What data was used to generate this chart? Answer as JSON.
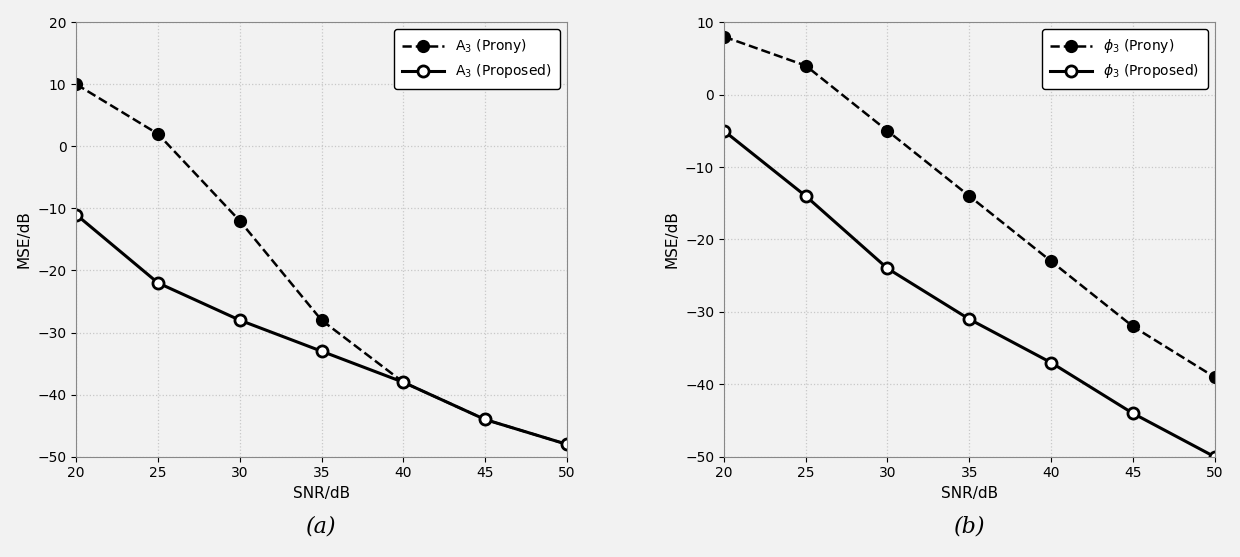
{
  "snr": [
    20,
    25,
    30,
    35,
    40,
    45,
    50
  ],
  "plot_a": {
    "prony": [
      10,
      2,
      -12,
      -28,
      -38,
      -44,
      -48
    ],
    "proposed": [
      -11,
      -22,
      -28,
      -33,
      -38,
      -44,
      -48
    ],
    "ylabel": "MSE/dB",
    "xlabel": "SNR/dB",
    "ylim": [
      -50,
      20
    ],
    "yticks": [
      -50,
      -40,
      -30,
      -20,
      -10,
      0,
      10,
      20
    ],
    "legend_prony": "A$_3$ (Prony)",
    "legend_proposed": "A$_3$ (Proposed)"
  },
  "plot_b": {
    "prony": [
      8,
      4,
      -5,
      -14,
      -23,
      -32,
      -39
    ],
    "proposed": [
      -5,
      -14,
      -24,
      -31,
      -37,
      -44,
      -50
    ],
    "ylabel": "MSE/dB",
    "xlabel": "SNR/dB",
    "ylim": [
      -50,
      10
    ],
    "yticks": [
      -50,
      -40,
      -30,
      -20,
      -10,
      0,
      10
    ],
    "legend_prony": "$\\phi_3$ (Prony)",
    "legend_proposed": "$\\phi_3$ (Proposed)"
  },
  "caption_a": "(a)",
  "caption_b": "(b)",
  "line_color": "#000000",
  "bg_color": "#f2f2f2",
  "axes_bg": "#f2f2f2",
  "grid_color": "#c8c8c8"
}
